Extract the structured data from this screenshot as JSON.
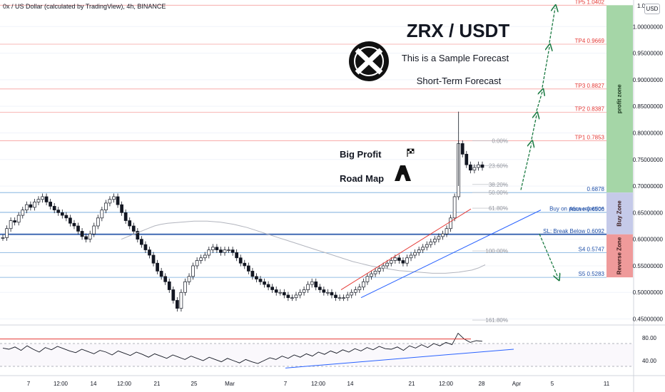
{
  "header": {
    "pair_info": "0x / US Dollar (calculated by TradingView), 4h, BINANCE",
    "currency_button": "USD"
  },
  "title": {
    "main": "ZRX / USDT",
    "sub1": "This is a Sample Forecast",
    "sub2": "Short-Term Forecast",
    "road_line1": "Big Profit",
    "road_line2": "Road Map"
  },
  "colors": {
    "profit_zone": "#a5d6a7",
    "buy_zone": "#c5cae9",
    "reverse_zone": "#ef9a9a",
    "up_candle": "#131722",
    "tp_line": "#ef5350",
    "level_line": "#5b9bd5",
    "sl_line": "#1e4fa8",
    "arrow": "#1b7a42"
  },
  "chart_data": {
    "type": "line",
    "price_axis": {
      "range": [
        0.44,
        1.0
      ],
      "ticks": [
        "1.00000000",
        "0.95000000",
        "0.90000000",
        "0.85000000",
        "0.80000000",
        "0.75000000",
        "0.70000000",
        "0.65000000",
        "0.60000000",
        "0.55000000",
        "0.50000000",
        "0.45000000"
      ],
      "top_partial": "1.0"
    },
    "time_axis": {
      "ticks": [
        "7",
        "12:00",
        "14",
        "12:00",
        "21",
        "25",
        "Mar",
        "7",
        "12:00",
        "14",
        "21",
        "12:00",
        "28",
        "Apr",
        "5",
        "11"
      ]
    },
    "price_series": [
      [
        0.603,
        0.62,
        0.635,
        0.632,
        0.645,
        0.655,
        0.665,
        0.66,
        0.67,
        0.675,
        0.68,
        0.67,
        0.662,
        0.655,
        0.65,
        0.645,
        0.64,
        0.63,
        0.625,
        0.615,
        0.605,
        0.6,
        0.61,
        0.625,
        0.64,
        0.655,
        0.668,
        0.675,
        0.68,
        0.665,
        0.65,
        0.635,
        0.625,
        0.615,
        0.6,
        0.59,
        0.58,
        0.57,
        0.555,
        0.54,
        0.53,
        0.52,
        0.505,
        0.485,
        0.47,
        0.5,
        0.52,
        0.53,
        0.55,
        0.56,
        0.565,
        0.57,
        0.58,
        0.585,
        0.58,
        0.575,
        0.58,
        0.58,
        0.575,
        0.565,
        0.555,
        0.55,
        0.54,
        0.53,
        0.525,
        0.52,
        0.515,
        0.51,
        0.505,
        0.5,
        0.5,
        0.495,
        0.49,
        0.49,
        0.495,
        0.5,
        0.505,
        0.515,
        0.52,
        0.51,
        0.505,
        0.5,
        0.5,
        0.495,
        0.49,
        0.49,
        0.49,
        0.495,
        0.5,
        0.505,
        0.51,
        0.52,
        0.53,
        0.535,
        0.54,
        0.545,
        0.55,
        0.555,
        0.56,
        0.565,
        0.56,
        0.555,
        0.565,
        0.57,
        0.575,
        0.58,
        0.585,
        0.59,
        0.595,
        0.6,
        0.605,
        0.61,
        0.62,
        0.64,
        0.68,
        0.78,
        0.76,
        0.74,
        0.73,
        0.735,
        0.74,
        0.735
      ]
    ],
    "ma_series": [
      0.6,
      0.605,
      0.61,
      0.615,
      0.62,
      0.625,
      0.628,
      0.63,
      0.631,
      0.632,
      0.633,
      0.634,
      0.634,
      0.634,
      0.633,
      0.632,
      0.63,
      0.628,
      0.625,
      0.622,
      0.618,
      0.614,
      0.61,
      0.606,
      0.602,
      0.598,
      0.594,
      0.59,
      0.586,
      0.582,
      0.578,
      0.574,
      0.57,
      0.566,
      0.562,
      0.558,
      0.555,
      0.552,
      0.549,
      0.547,
      0.545,
      0.543,
      0.541,
      0.54,
      0.539,
      0.538,
      0.537,
      0.536,
      0.536,
      0.536,
      0.537,
      0.538,
      0.54,
      0.542,
      0.546,
      0.552
    ],
    "levels": [
      {
        "label": "TP5 1.0402",
        "price": 1.0402,
        "kind": "tp"
      },
      {
        "label": "TP4 0.9669",
        "price": 0.9669,
        "kind": "tp"
      },
      {
        "label": "TP3 0.8827",
        "price": 0.8827,
        "kind": "tp"
      },
      {
        "label": "TP2 0.8387",
        "price": 0.8387,
        "kind": "tp"
      },
      {
        "label": "TP1 0.7853",
        "price": 0.7853,
        "kind": "tp"
      },
      {
        "label": "0.6878",
        "price": 0.6878,
        "kind": "level"
      },
      {
        "label": "Buy on price rejection",
        "price": 0.654,
        "kind": "note"
      },
      {
        "label": "Above 0.6506",
        "price": 0.6506,
        "kind": "level"
      },
      {
        "label": "SL: Break Below 0.6092",
        "price": 0.6092,
        "kind": "sl"
      },
      {
        "label": "S4 0.5747",
        "price": 0.5747,
        "kind": "level"
      },
      {
        "label": "S5 0.5283",
        "price": 0.5283,
        "kind": "level"
      }
    ],
    "fib_levels": [
      {
        "label": "0.00%",
        "price": 0.7853
      },
      {
        "label": "23.60%",
        "price": 0.738
      },
      {
        "label": "38.20%",
        "price": 0.703
      },
      {
        "label": "50.00%",
        "price": 0.6878
      },
      {
        "label": "61.80%",
        "price": 0.6585
      },
      {
        "label": "100.00%",
        "price": 0.578
      },
      {
        "label": "161.80%",
        "price": 0.448
      }
    ],
    "zones": [
      {
        "label": "profit zone",
        "from": 1.0402,
        "to": 0.6878
      },
      {
        "label": "Buy Zone",
        "from": 0.6878,
        "to": 0.6092
      },
      {
        "label": "Reverse Zone",
        "from": 0.6092,
        "to": 0.5283
      }
    ],
    "forecast_path": [
      0.69,
      0.7853,
      0.8387,
      0.8827,
      0.9669,
      1.0402
    ],
    "rsi": {
      "ticks": [
        "80.00",
        "40.00"
      ],
      "range": [
        20,
        100
      ],
      "values": [
        62,
        60,
        64,
        58,
        66,
        60,
        55,
        63,
        59,
        65,
        61,
        57,
        54,
        60,
        56,
        52,
        58,
        55,
        50,
        57,
        53,
        49,
        55,
        51,
        46,
        52,
        48,
        44,
        50,
        46,
        42,
        48,
        44,
        40,
        46,
        42,
        38,
        44,
        40,
        36,
        42,
        38,
        35,
        40,
        45,
        42,
        48,
        44,
        50,
        46,
        52,
        48,
        55,
        51,
        57,
        53,
        59,
        55,
        61,
        57,
        63,
        59,
        65,
        61,
        60,
        64,
        58,
        66,
        62,
        68,
        63,
        70,
        66,
        72,
        68,
        88,
        78,
        72,
        75,
        74
      ]
    }
  }
}
